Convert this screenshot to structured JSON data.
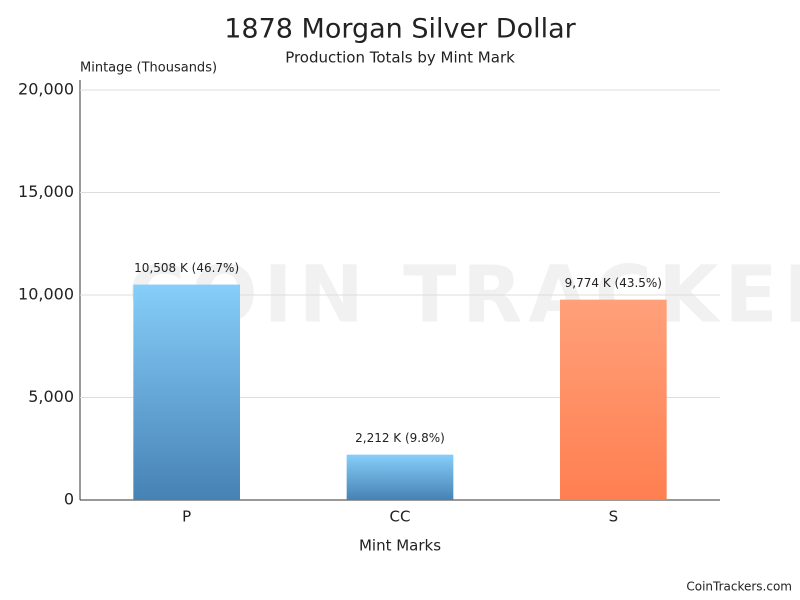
{
  "chart_data": {
    "type": "bar",
    "title": "1878 Morgan Silver Dollar",
    "subtitle": "Production Totals by Mint Mark",
    "y_axis_label": "Mintage (Thousands)",
    "x_axis_label": "Mint Marks",
    "watermark": "COIN TRACKERS",
    "footer": "CoinTrackers.com",
    "categories": [
      "P",
      "CC",
      "S"
    ],
    "values": [
      10508,
      2212,
      9774
    ],
    "value_labels": [
      "10,508 K (46.7%)",
      "2,212 K (9.8%)",
      "9,774 K (43.5%)"
    ],
    "colors": [
      [
        "#87cefa",
        "#4682b4"
      ],
      [
        "#87cefa",
        "#4682b4"
      ],
      [
        "#ffa07a",
        "#ff7f50"
      ]
    ],
    "ylim": [
      0,
      20000
    ],
    "yticks": [
      0,
      {
        "value": 5000,
        "label": "5,000"
      },
      {
        "value": 10000,
        "label": "10,000"
      },
      {
        "value": 15000,
        "label": "15,000"
      },
      {
        "value": 20000,
        "label": "20,000"
      }
    ],
    "grid": true
  }
}
